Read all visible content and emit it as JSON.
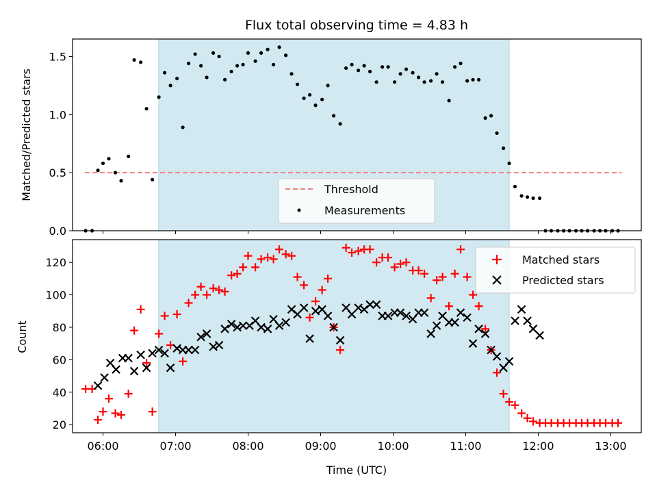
{
  "chart_data": [
    {
      "type": "scatter",
      "title": "Flux total observing time = 4.83 h",
      "xlabel": "",
      "ylabel": "Matched/Predicted stars",
      "xlim": [
        5.58,
        13.42
      ],
      "ylim": [
        0,
        1.65
      ],
      "yticks": [
        0,
        0.5,
        1.0,
        1.5
      ],
      "ytick_labels": [
        "0.0",
        "0.5",
        "1.0",
        "1.5"
      ],
      "shaded_interval": {
        "from": 6.767,
        "to": 11.6,
        "color": "#d3e9f1"
      },
      "threshold": {
        "name": "Threshold",
        "y": 0.5,
        "x_range": [
          5.75,
          13.15
        ],
        "color": "#f08080",
        "style": "dashed"
      },
      "legend": {
        "position": "bottom-center",
        "entries": [
          "Threshold",
          "Measurements"
        ]
      },
      "series": [
        {
          "name": "Measurements",
          "color": "#000000",
          "marker": "dot",
          "x": [
            5.76,
            5.85,
            5.93,
            6.0,
            6.08,
            6.17,
            6.25,
            6.35,
            6.43,
            6.52,
            6.6,
            6.68,
            6.77,
            6.85,
            6.93,
            7.02,
            7.1,
            7.18,
            7.27,
            7.35,
            7.43,
            7.52,
            7.6,
            7.68,
            7.77,
            7.85,
            7.93,
            8.0,
            8.1,
            8.18,
            8.27,
            8.35,
            8.43,
            8.52,
            8.6,
            8.68,
            8.77,
            8.85,
            8.93,
            9.02,
            9.1,
            9.18,
            9.27,
            9.35,
            9.43,
            9.52,
            9.6,
            9.68,
            9.77,
            9.85,
            9.93,
            10.02,
            10.1,
            10.18,
            10.27,
            10.35,
            10.43,
            10.52,
            10.6,
            10.68,
            10.77,
            10.85,
            10.93,
            11.02,
            11.1,
            11.18,
            11.27,
            11.35,
            11.43,
            11.52,
            11.6,
            11.68,
            11.77,
            11.85,
            11.93,
            12.02,
            12.1,
            12.18,
            12.27,
            12.35,
            12.43,
            12.52,
            12.6,
            12.68,
            12.77,
            12.85,
            12.93,
            13.02,
            13.1
          ],
          "y": [
            0,
            0,
            0.52,
            0.58,
            0.62,
            0.5,
            0.43,
            0.64,
            1.47,
            1.45,
            1.05,
            0.44,
            1.15,
            1.36,
            1.25,
            1.31,
            0.89,
            1.44,
            1.52,
            1.42,
            1.32,
            1.53,
            1.5,
            1.3,
            1.37,
            1.42,
            1.43,
            1.53,
            1.46,
            1.53,
            1.56,
            1.43,
            1.58,
            1.51,
            1.35,
            1.26,
            1.14,
            1.17,
            1.08,
            1.13,
            1.25,
            0.99,
            0.92,
            1.4,
            1.43,
            1.38,
            1.42,
            1.37,
            1.28,
            1.41,
            1.41,
            1.28,
            1.35,
            1.39,
            1.36,
            1.32,
            1.28,
            1.29,
            1.35,
            1.28,
            1.12,
            1.41,
            1.44,
            1.29,
            1.3,
            1.3,
            0.97,
            0.99,
            0.84,
            0.71,
            0.58,
            0.38,
            0.3,
            0.29,
            0.28,
            0.28,
            0,
            0,
            0,
            0,
            0,
            0,
            0,
            0,
            0,
            0,
            0,
            0,
            0
          ]
        }
      ]
    },
    {
      "type": "scatter",
      "title": "",
      "xlabel": "Time (UTC)",
      "ylabel": "Count",
      "xlim": [
        5.58,
        13.42
      ],
      "ylim": [
        15,
        134
      ],
      "yticks": [
        20,
        40,
        60,
        80,
        100,
        120
      ],
      "xticks": [
        6,
        7,
        8,
        9,
        10,
        11,
        12,
        13
      ],
      "xtick_labels": [
        "06:00",
        "07:00",
        "08:00",
        "09:00",
        "10:00",
        "11:00",
        "12:00",
        "13:00"
      ],
      "shaded_interval": {
        "from": 6.767,
        "to": 11.6,
        "color": "#d3e9f1"
      },
      "legend": {
        "position": "top-right",
        "entries": [
          "Matched stars",
          "Predicted stars"
        ]
      },
      "series": [
        {
          "name": "Matched stars",
          "color": "#ff0000",
          "marker": "plus",
          "x": [
            5.76,
            5.85,
            5.93,
            6.0,
            6.08,
            6.17,
            6.25,
            6.35,
            6.43,
            6.52,
            6.6,
            6.68,
            6.77,
            6.85,
            6.93,
            7.02,
            7.1,
            7.18,
            7.27,
            7.35,
            7.43,
            7.52,
            7.6,
            7.68,
            7.77,
            7.85,
            7.93,
            8.0,
            8.1,
            8.18,
            8.27,
            8.35,
            8.43,
            8.52,
            8.6,
            8.68,
            8.77,
            8.85,
            8.93,
            9.02,
            9.1,
            9.18,
            9.27,
            9.35,
            9.43,
            9.52,
            9.6,
            9.68,
            9.77,
            9.85,
            9.93,
            10.02,
            10.1,
            10.18,
            10.27,
            10.35,
            10.43,
            10.52,
            10.6,
            10.68,
            10.77,
            10.85,
            10.93,
            11.02,
            11.1,
            11.18,
            11.27,
            11.35,
            11.43,
            11.52,
            11.6,
            11.68,
            11.77,
            11.85,
            11.93,
            12.02,
            12.1,
            12.18,
            12.27,
            12.35,
            12.43,
            12.52,
            12.6,
            12.68,
            12.77,
            12.85,
            12.93,
            13.02,
            13.1
          ],
          "y": [
            42,
            42,
            23,
            28,
            36,
            27,
            26,
            39,
            78,
            91,
            58,
            28,
            76,
            87,
            69,
            88,
            59,
            95,
            100,
            105,
            100,
            104,
            103,
            102,
            112,
            113,
            117,
            124,
            117,
            122,
            123,
            122,
            128,
            125,
            124,
            111,
            106,
            86,
            96,
            103,
            110,
            80,
            66,
            129,
            126,
            127,
            128,
            128,
            120,
            123,
            123,
            117,
            119,
            120,
            115,
            115,
            113,
            98,
            109,
            111,
            93,
            113,
            128,
            111,
            100,
            93,
            79,
            66,
            52,
            39,
            34,
            32,
            27,
            24,
            22,
            21,
            21,
            21,
            21,
            21,
            21,
            21,
            21,
            21,
            21,
            21,
            21,
            21,
            21
          ]
        },
        {
          "name": "Predicted stars",
          "color": "#000000",
          "marker": "x",
          "x": [
            5.93,
            6.02,
            6.1,
            6.18,
            6.27,
            6.35,
            6.43,
            6.52,
            6.6,
            6.68,
            6.77,
            6.85,
            6.93,
            7.02,
            7.1,
            7.18,
            7.27,
            7.35,
            7.43,
            7.52,
            7.6,
            7.68,
            7.77,
            7.85,
            7.93,
            8.02,
            8.1,
            8.18,
            8.27,
            8.35,
            8.43,
            8.52,
            8.6,
            8.68,
            8.77,
            8.85,
            8.93,
            9.02,
            9.1,
            9.18,
            9.27,
            9.35,
            9.43,
            9.52,
            9.6,
            9.68,
            9.77,
            9.85,
            9.93,
            10.02,
            10.1,
            10.18,
            10.27,
            10.35,
            10.43,
            10.52,
            10.6,
            10.68,
            10.77,
            10.85,
            10.93,
            11.02,
            11.1,
            11.18,
            11.27,
            11.35,
            11.43,
            11.52,
            11.6,
            11.68,
            11.77,
            11.85,
            11.93,
            12.02
          ],
          "y": [
            44,
            49,
            58,
            54,
            61,
            61,
            53,
            63,
            55,
            64,
            66,
            64,
            55,
            67,
            66,
            66,
            66,
            74,
            76,
            68,
            69,
            79,
            82,
            80,
            81,
            81,
            84,
            80,
            79,
            85,
            81,
            83,
            91,
            88,
            92,
            73,
            90,
            91,
            87,
            80,
            72,
            92,
            88,
            92,
            91,
            94,
            94,
            87,
            87,
            89,
            89,
            87,
            85,
            89,
            89,
            76,
            81,
            87,
            83,
            83,
            89,
            86,
            70,
            79,
            76,
            66,
            62,
            55,
            59,
            84,
            91,
            84,
            79,
            75
          ]
        }
      ]
    }
  ]
}
